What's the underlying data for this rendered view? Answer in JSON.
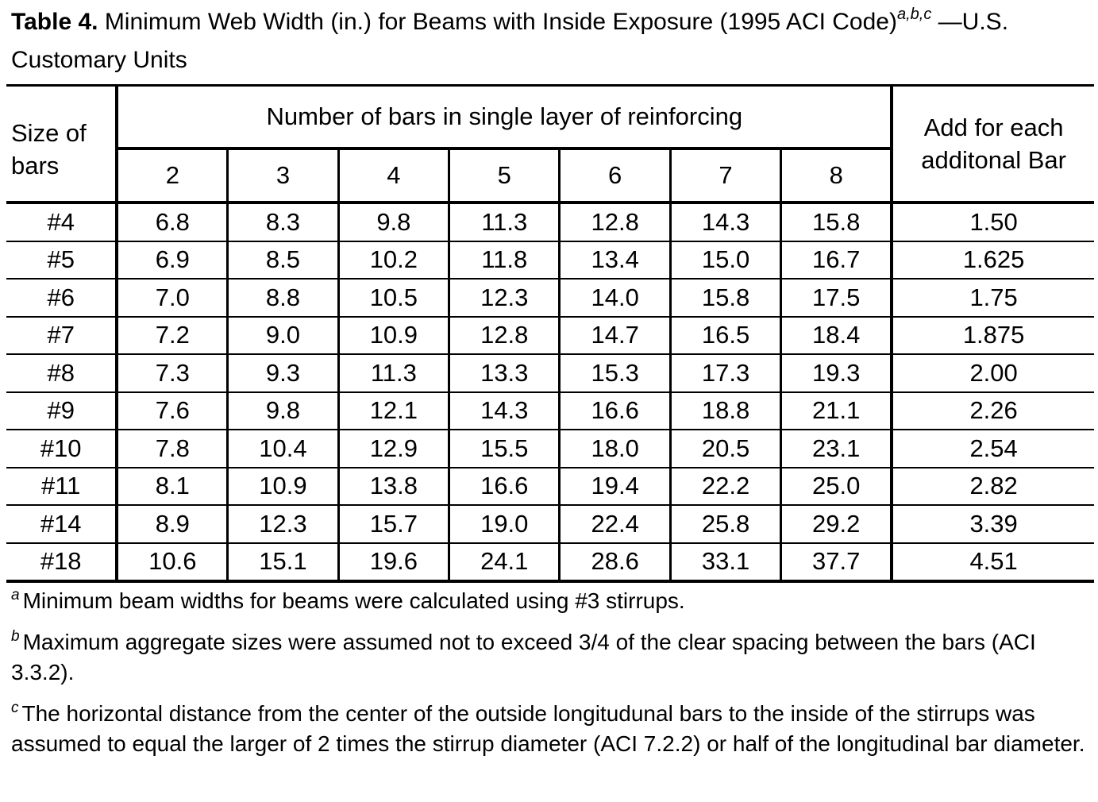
{
  "caption": {
    "label": "Table 4.",
    "text": " Minimum Web Width (in.) for Beams with Inside Exposure (1995 ACI Code)",
    "sup": "a,b,c",
    "suffix": " —U.S. Customary Units"
  },
  "table": {
    "size_header": "Size of bars",
    "group_header": "Number of bars in single layer of reinforcing",
    "add_header": "Add for each additonal Bar",
    "bar_counts": [
      "2",
      "3",
      "4",
      "5",
      "6",
      "7",
      "8"
    ],
    "rows": [
      {
        "size": "#4",
        "values": [
          "6.8",
          "8.3",
          "9.8",
          "11.3",
          "12.8",
          "14.3",
          "15.8"
        ],
        "add": "1.50"
      },
      {
        "size": "#5",
        "values": [
          "6.9",
          "8.5",
          "10.2",
          "11.8",
          "13.4",
          "15.0",
          "16.7"
        ],
        "add": "1.625"
      },
      {
        "size": "#6",
        "values": [
          "7.0",
          "8.8",
          "10.5",
          "12.3",
          "14.0",
          "15.8",
          "17.5"
        ],
        "add": "1.75"
      },
      {
        "size": "#7",
        "values": [
          "7.2",
          "9.0",
          "10.9",
          "12.8",
          "14.7",
          "16.5",
          "18.4"
        ],
        "add": "1.875"
      },
      {
        "size": "#8",
        "values": [
          "7.3",
          "9.3",
          "11.3",
          "13.3",
          "15.3",
          "17.3",
          "19.3"
        ],
        "add": "2.00"
      },
      {
        "size": "#9",
        "values": [
          "7.6",
          "9.8",
          "12.1",
          "14.3",
          "16.6",
          "18.8",
          "21.1"
        ],
        "add": "2.26"
      },
      {
        "size": "#10",
        "values": [
          "7.8",
          "10.4",
          "12.9",
          "15.5",
          "18.0",
          "20.5",
          "23.1"
        ],
        "add": "2.54"
      },
      {
        "size": "#11",
        "values": [
          "8.1",
          "10.9",
          "13.8",
          "16.6",
          "19.4",
          "22.2",
          "25.0"
        ],
        "add": "2.82"
      },
      {
        "size": "#14",
        "values": [
          "8.9",
          "12.3",
          "15.7",
          "19.0",
          "22.4",
          "25.8",
          "29.2"
        ],
        "add": "3.39"
      },
      {
        "size": "#18",
        "values": [
          "10.6",
          "15.1",
          "19.6",
          "24.1",
          "28.6",
          "33.1",
          "37.7"
        ],
        "add": "4.51"
      }
    ]
  },
  "notes": [
    {
      "mark": "a",
      "text": "Minimum beam widths for beams were calculated using #3 stirrups."
    },
    {
      "mark": "b",
      "text": "Maximum aggregate sizes were assumed not to exceed 3/4 of the clear spacing between the bars (ACI 3.3.2)."
    },
    {
      "mark": "c",
      "text": "The horizontal distance from the center of the outside longitudunal bars to the inside of the stirrups was assumed to equal the larger of 2 times the stirrup diameter (ACI 7.2.2) or half of the longitudinal bar diameter."
    }
  ]
}
